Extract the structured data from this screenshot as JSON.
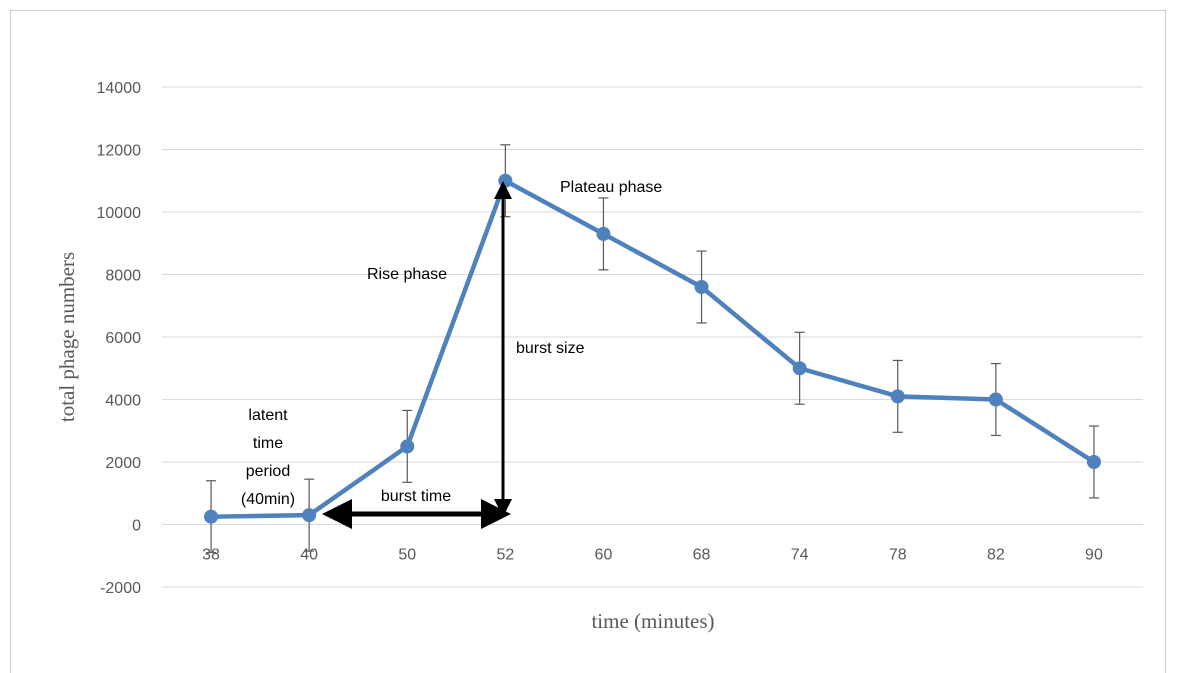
{
  "chart_data": {
    "type": "line",
    "categories": [
      "38",
      "40",
      "50",
      "52",
      "60",
      "68",
      "74",
      "78",
      "82",
      "90"
    ],
    "series": [
      {
        "values": [
          250,
          300,
          2500,
          11000,
          9300,
          7600,
          5000,
          4100,
          4000,
          2000
        ],
        "error": 1150,
        "color": "#4f81bd"
      }
    ],
    "xlabel": "time (minutes)",
    "ylabel": "total phage numbers",
    "ylim": [
      -2000,
      14000
    ],
    "yticks": [
      "-2000",
      "0",
      "2000",
      "4000",
      "6000",
      "8000",
      "10000",
      "12000",
      "14000"
    ],
    "grid": true,
    "annotations": {
      "latent": [
        "latent",
        "time",
        "period",
        "(40min)"
      ],
      "burst_time": "burst time",
      "rise_phase": "Rise phase",
      "burst_size": "burst size",
      "plateau_phase": "Plateau phase"
    }
  }
}
